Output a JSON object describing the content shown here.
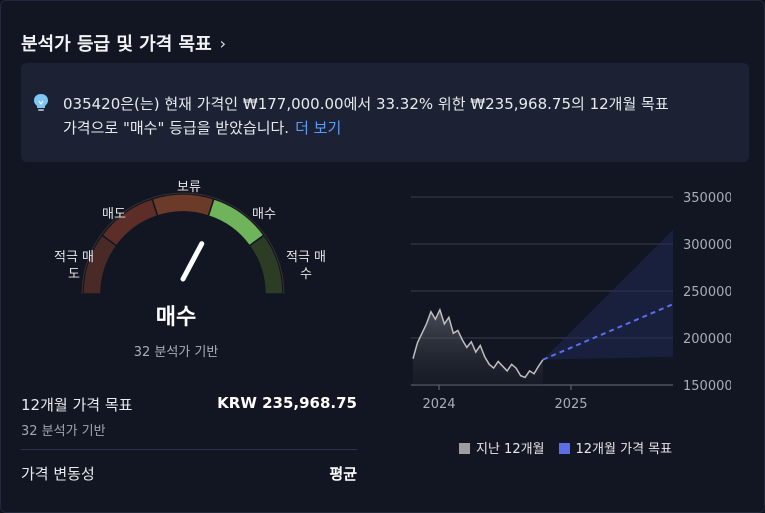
{
  "header": {
    "title": "분석가 등급 및 가격 목표",
    "chevron_icon": "chevron-right-icon"
  },
  "summary": {
    "icon": "lightbulb-icon",
    "line1": "035420은(는) 현재 가격인 ₩177,000.00에서 33.32% 위한 ₩235,968.75의 12개월 목표",
    "line2": "가격으로 \"매수\" 등급을 받았습니다.",
    "more_link": "더 보기"
  },
  "gauge": {
    "labels": {
      "strong_sell_1": "적극 매",
      "strong_sell_2": "도",
      "sell": "매도",
      "hold": "보류",
      "buy": "매수",
      "strong_buy_1": "적극 매",
      "strong_buy_2": "수"
    },
    "active_segment": "buy",
    "colors": {
      "strong_sell": "#4a2a27",
      "sell": "#5c2e27",
      "hold": "#6b3a28",
      "buy": "#6fb35a",
      "strong_buy": "#2d3d25"
    },
    "rating": "매수",
    "rating_sub": "32 분석가 기반"
  },
  "target": {
    "label": "12개월 가격 목표",
    "value": "KRW 235,968.75",
    "sub": "32 분석가 기반"
  },
  "volatility": {
    "label": "가격 변동성",
    "value": "평균"
  },
  "chart_data": {
    "type": "line",
    "y_ticks": [
      "350000",
      "300000",
      "250000",
      "200000",
      "150000"
    ],
    "ylim": [
      150000,
      350000
    ],
    "x_ticks": [
      "2024",
      "2025"
    ],
    "series": [
      {
        "name": "지난 12개월",
        "color": "#9e9e9e",
        "values": [
          178000,
          195000,
          205000,
          215000,
          228000,
          220000,
          230000,
          215000,
          222000,
          205000,
          208000,
          198000,
          190000,
          196000,
          185000,
          192000,
          180000,
          172000,
          168000,
          175000,
          170000,
          165000,
          172000,
          168000,
          160000,
          158000,
          165000,
          162000,
          170000,
          177000
        ]
      },
      {
        "name": "12개월 가격 목표",
        "color": "#5b6ee8",
        "values": [
          177000,
          235968.75
        ]
      }
    ],
    "target_band": {
      "high": 315000,
      "low": 180000
    },
    "legend": "bottom"
  }
}
